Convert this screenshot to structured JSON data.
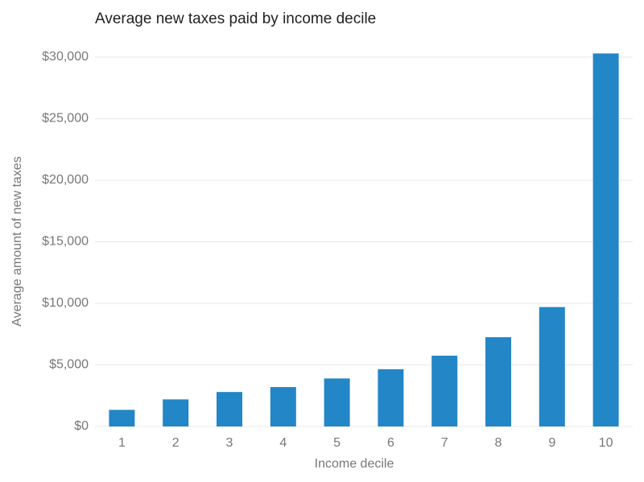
{
  "chart_data": {
    "type": "bar",
    "title": "Average new taxes paid by income decile",
    "x_label": "Income decile",
    "y_label": "Average amount of new taxes",
    "categories": [
      "1",
      "2",
      "3",
      "4",
      "5",
      "6",
      "7",
      "8",
      "9",
      "10"
    ],
    "values": [
      1350,
      2200,
      2800,
      3200,
      3900,
      4650,
      5750,
      7250,
      9700,
      30300
    ],
    "color": "#2386c6",
    "ylim": [
      0,
      30000
    ],
    "yticks": [
      {
        "value": 0,
        "label": "$0"
      },
      {
        "value": 5000,
        "label": "$5,000"
      },
      {
        "value": 10000,
        "label": "$10,000"
      },
      {
        "value": 15000,
        "label": "$15,000"
      },
      {
        "value": 20000,
        "label": "$20,000"
      },
      {
        "value": 25000,
        "label": "$25,000"
      },
      {
        "value": 30000,
        "label": "$30,000"
      }
    ],
    "grid": true
  }
}
